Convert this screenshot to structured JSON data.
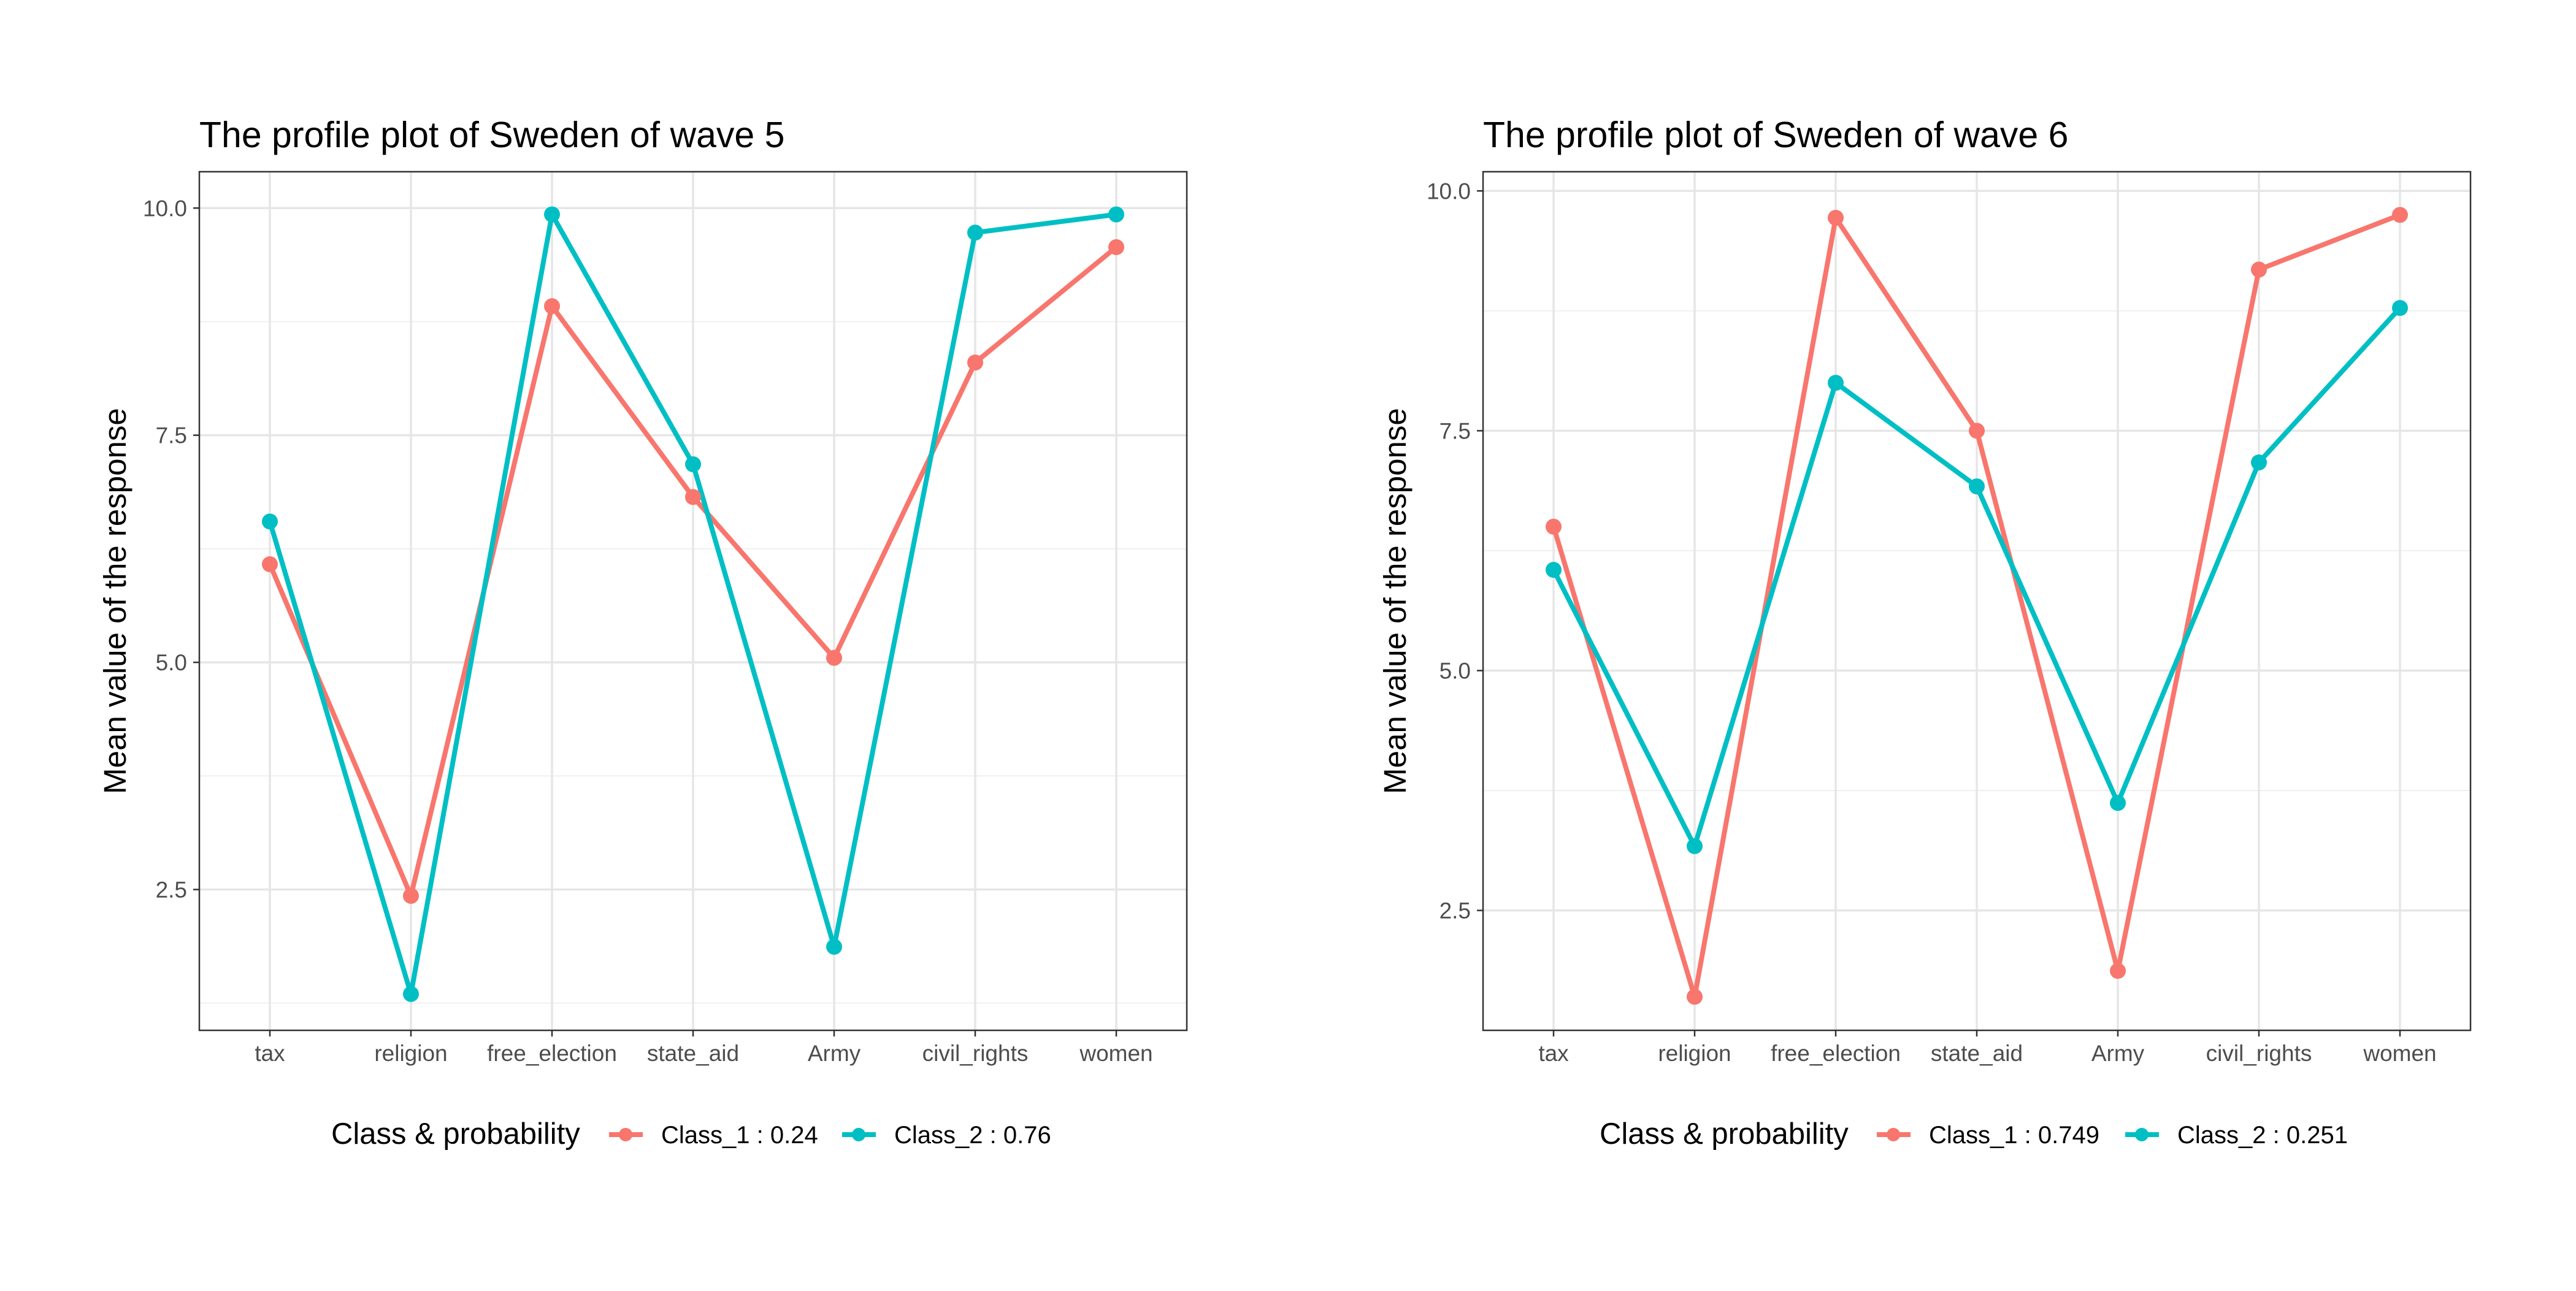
{
  "chart_data": [
    {
      "type": "line",
      "title": "The profile plot of Sweden of wave 5",
      "xlabel": "",
      "ylabel": "Mean value of the response",
      "categories": [
        "tax",
        "religion",
        "free_election",
        "state_aid",
        "Army",
        "civil_rights",
        "women"
      ],
      "ylim": [
        0.95,
        10.4
      ],
      "yticks": [
        "2.5",
        "5.0",
        "7.5",
        "10.0"
      ],
      "ytick_values": [
        2.5,
        5.0,
        7.5,
        10.0
      ],
      "legend_title": "Class & probability",
      "legend_position": "bottom",
      "grid": true,
      "series": [
        {
          "name": "Class_1 : 0.24",
          "color": "#F8766D",
          "values": [
            6.08,
            2.43,
            8.92,
            6.82,
            5.05,
            8.3,
            9.57
          ]
        },
        {
          "name": "Class_2 : 0.76",
          "color": "#00BFC4",
          "values": [
            6.55,
            1.35,
            9.93,
            7.18,
            1.87,
            9.73,
            9.93
          ]
        }
      ]
    },
    {
      "type": "line",
      "title": "The profile plot of Sweden of wave 6",
      "xlabel": "",
      "ylabel": "Mean value of the response",
      "categories": [
        "tax",
        "religion",
        "free_election",
        "state_aid",
        "Army",
        "civil_rights",
        "women"
      ],
      "ylim": [
        1.25,
        10.2
      ],
      "yticks": [
        "2.5",
        "5.0",
        "7.5",
        "10.0"
      ],
      "ytick_values": [
        2.5,
        5.0,
        7.5,
        10.0
      ],
      "legend_title": "Class & probability",
      "legend_position": "bottom",
      "grid": true,
      "series": [
        {
          "name": "Class_1 : 0.749",
          "color": "#F8766D",
          "values": [
            6.5,
            1.6,
            9.72,
            7.5,
            1.87,
            9.18,
            9.75
          ]
        },
        {
          "name": "Class_2 : 0.251",
          "color": "#00BFC4",
          "values": [
            6.05,
            3.17,
            8.0,
            6.92,
            3.62,
            7.17,
            8.78
          ]
        }
      ]
    }
  ]
}
